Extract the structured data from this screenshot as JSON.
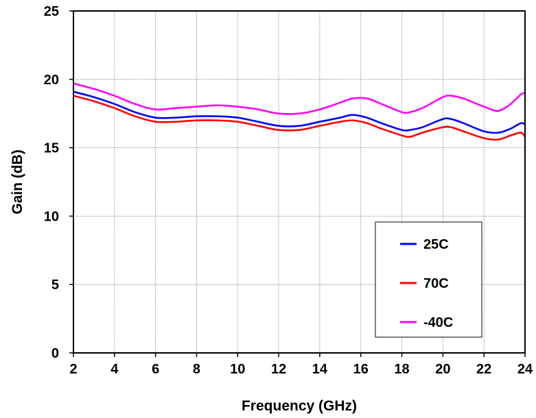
{
  "chart_data": {
    "type": "line",
    "title": "",
    "xlabel": "Frequency (GHz)",
    "ylabel": "Gain (dB)",
    "xlim": [
      2,
      24
    ],
    "ylim": [
      0,
      25
    ],
    "xticks": [
      "2",
      "4",
      "6",
      "8",
      "10",
      "12",
      "14",
      "16",
      "18",
      "20",
      "22",
      "24"
    ],
    "yticks": [
      "0",
      "5",
      "10",
      "15",
      "20",
      "25"
    ],
    "grid": true,
    "legend_position": "bottom-right",
    "series": [
      {
        "name": "25C",
        "color": "#0000ff",
        "x": [
          2,
          3,
          4,
          5,
          6,
          7,
          8,
          9,
          10,
          11,
          12,
          13,
          14,
          15,
          15.6,
          16.3,
          17,
          18,
          18.4,
          19,
          20,
          20.4,
          21,
          22,
          22.7,
          23.3,
          23.8,
          24
        ],
        "y": [
          19.1,
          18.7,
          18.2,
          17.6,
          17.2,
          17.2,
          17.3,
          17.3,
          17.2,
          16.9,
          16.6,
          16.6,
          16.9,
          17.2,
          17.4,
          17.2,
          16.8,
          16.3,
          16.3,
          16.5,
          17.1,
          17.1,
          16.8,
          16.2,
          16.1,
          16.4,
          16.8,
          16.7
        ]
      },
      {
        "name": "70C",
        "color": "#ff0000",
        "x": [
          2,
          3,
          4,
          5,
          6,
          7,
          8,
          9,
          10,
          11,
          12,
          13,
          14,
          15,
          15.6,
          16.3,
          17,
          18,
          18.4,
          19,
          20,
          20.4,
          21,
          22,
          22.7,
          23.3,
          23.8,
          24
        ],
        "y": [
          18.8,
          18.4,
          17.9,
          17.3,
          16.9,
          16.9,
          17.0,
          17.0,
          16.9,
          16.6,
          16.3,
          16.3,
          16.6,
          16.9,
          17.0,
          16.8,
          16.4,
          15.9,
          15.8,
          16.1,
          16.5,
          16.5,
          16.2,
          15.7,
          15.6,
          15.9,
          16.1,
          15.8
        ]
      },
      {
        "name": "-40C",
        "color": "#ff00ff",
        "x": [
          2,
          3,
          4,
          5,
          6,
          7,
          8,
          9,
          10,
          11,
          12,
          13,
          14,
          15,
          15.6,
          16.3,
          17,
          18,
          18.4,
          19,
          20,
          20.4,
          21,
          22,
          22.7,
          23.3,
          23.8,
          24
        ],
        "y": [
          19.7,
          19.3,
          18.8,
          18.2,
          17.8,
          17.9,
          18.0,
          18.1,
          18.0,
          17.8,
          17.5,
          17.5,
          17.8,
          18.3,
          18.6,
          18.6,
          18.2,
          17.6,
          17.6,
          17.9,
          18.7,
          18.8,
          18.6,
          18.0,
          17.7,
          18.2,
          18.9,
          19.0
        ]
      }
    ]
  }
}
